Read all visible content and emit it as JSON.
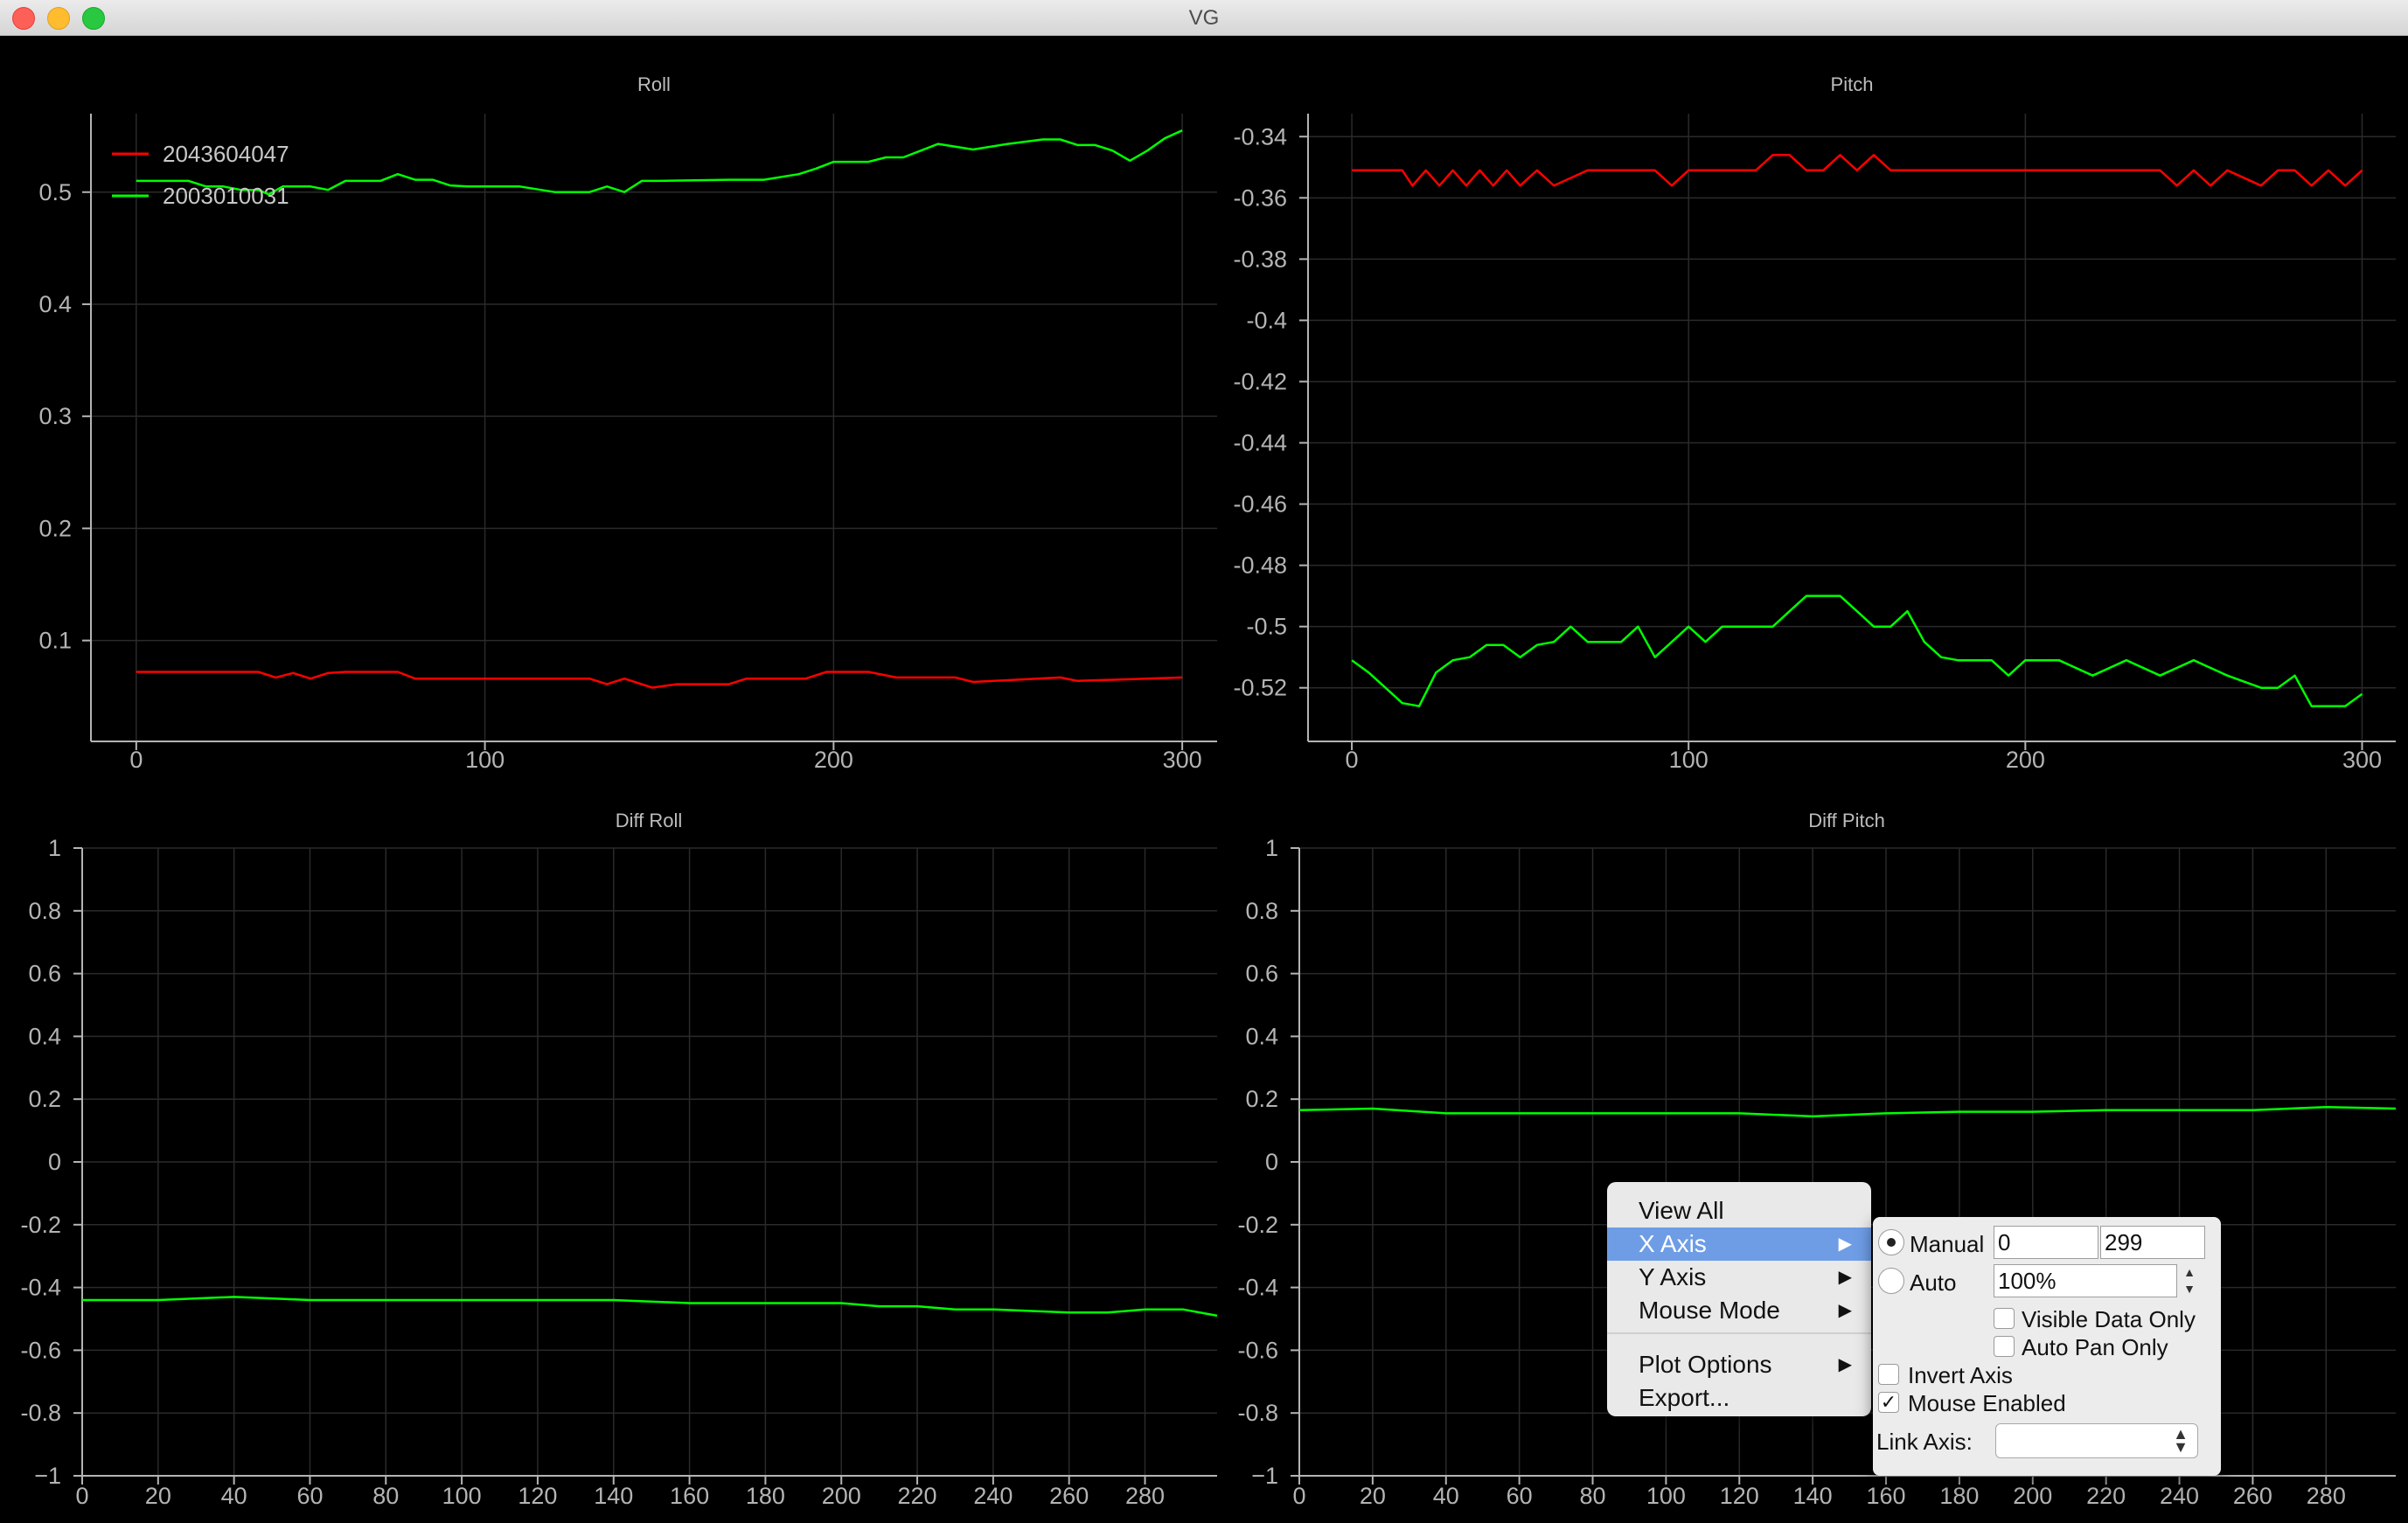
{
  "window": {
    "title": "VG"
  },
  "colors": {
    "red_series": "#ff0000",
    "green_series": "#00ff00",
    "axis_text": "#b4b4b4",
    "grid": "#2a2a2a"
  },
  "plots": [
    {
      "title": "Roll",
      "x_ticks": [
        "0",
        "100",
        "200",
        "300"
      ],
      "y_ticks": [
        "0.5",
        "0.4",
        "0.3",
        "0.2",
        "0.1"
      ],
      "legend": [
        {
          "label": "2043604047",
          "color": "red"
        },
        {
          "label": "2003010031",
          "color": "green"
        }
      ]
    },
    {
      "title": "Pitch",
      "x_ticks": [
        "0",
        "100",
        "200",
        "300"
      ],
      "y_ticks": [
        "-0.34",
        "-0.36",
        "-0.38",
        "-0.4",
        "-0.42",
        "-0.44",
        "-0.46",
        "-0.48",
        "-0.5",
        "-0.52"
      ]
    },
    {
      "title": "Diff Roll",
      "x_ticks": [
        "0",
        "20",
        "40",
        "60",
        "80",
        "100",
        "120",
        "140",
        "160",
        "180",
        "200",
        "220",
        "240",
        "260",
        "280"
      ],
      "y_ticks": [
        "1",
        "0.8",
        "0.6",
        "0.4",
        "0.2",
        "0",
        "-0.2",
        "-0.4",
        "-0.6",
        "-0.8",
        "−1"
      ]
    },
    {
      "title": "Diff Pitch",
      "x_ticks": [
        "0",
        "20",
        "40",
        "60",
        "80",
        "100",
        "120",
        "140",
        "160",
        "180",
        "200",
        "220",
        "240",
        "260",
        "280"
      ],
      "y_ticks": [
        "1",
        "0.8",
        "0.6",
        "0.4",
        "0.2",
        "0",
        "-0.2",
        "-0.4",
        "-0.6",
        "-0.8",
        "−1"
      ]
    }
  ],
  "chart_data": [
    {
      "type": "line",
      "title": "Roll",
      "xlim": [
        -13,
        310
      ],
      "ylim": [
        0.01,
        0.57
      ],
      "series": [
        {
          "name": "2043604047",
          "color": "red",
          "x": [
            0,
            35,
            40,
            45,
            50,
            55,
            60,
            75,
            80,
            130,
            135,
            140,
            148,
            155,
            170,
            175,
            192,
            198,
            210,
            218,
            225,
            235,
            240,
            265,
            270,
            300
          ],
          "y": [
            0.072,
            0.072,
            0.067,
            0.071,
            0.066,
            0.071,
            0.072,
            0.072,
            0.066,
            0.066,
            0.061,
            0.066,
            0.058,
            0.061,
            0.061,
            0.066,
            0.066,
            0.072,
            0.072,
            0.067,
            0.067,
            0.067,
            0.063,
            0.067,
            0.064,
            0.067
          ]
        },
        {
          "name": "2003010031",
          "color": "green",
          "x": [
            0,
            15,
            20,
            25,
            30,
            35,
            38,
            42,
            45,
            50,
            55,
            60,
            65,
            70,
            75,
            80,
            85,
            90,
            95,
            100,
            110,
            120,
            130,
            135,
            140,
            145,
            150,
            170,
            180,
            190,
            195,
            200,
            210,
            215,
            220,
            225,
            230,
            240,
            250,
            260,
            265,
            270,
            275,
            280,
            285,
            290,
            295,
            300
          ],
          "y": [
            0.51,
            0.51,
            0.505,
            0.505,
            0.502,
            0.502,
            0.498,
            0.505,
            0.505,
            0.505,
            0.502,
            0.51,
            0.51,
            0.51,
            0.516,
            0.511,
            0.511,
            0.506,
            0.505,
            0.505,
            0.505,
            0.5,
            0.5,
            0.505,
            0.5,
            0.51,
            0.51,
            0.511,
            0.511,
            0.516,
            0.521,
            0.527,
            0.527,
            0.531,
            0.531,
            0.537,
            0.543,
            0.538,
            0.543,
            0.547,
            0.547,
            0.542,
            0.542,
            0.537,
            0.528,
            0.537,
            0.548,
            0.555
          ]
        }
      ]
    },
    {
      "type": "line",
      "title": "Pitch",
      "xlim": [
        -13,
        310
      ],
      "ylim": [
        -0.5375,
        -0.3325
      ],
      "series": [
        {
          "color": "red",
          "x": [
            0,
            15,
            18,
            22,
            26,
            30,
            34,
            38,
            42,
            46,
            50,
            55,
            60,
            70,
            90,
            95,
            100,
            120,
            125,
            130,
            135,
            140,
            145,
            150,
            155,
            160,
            240,
            245,
            250,
            255,
            260,
            270,
            275,
            280,
            285,
            290,
            295,
            300
          ],
          "y": [
            -0.351,
            -0.351,
            -0.356,
            -0.351,
            -0.356,
            -0.351,
            -0.356,
            -0.351,
            -0.356,
            -0.351,
            -0.356,
            -0.351,
            -0.356,
            -0.351,
            -0.351,
            -0.356,
            -0.351,
            -0.351,
            -0.346,
            -0.346,
            -0.351,
            -0.351,
            -0.346,
            -0.351,
            -0.346,
            -0.351,
            -0.351,
            -0.356,
            -0.351,
            -0.356,
            -0.351,
            -0.356,
            -0.351,
            -0.351,
            -0.356,
            -0.351,
            -0.356,
            -0.351
          ]
        },
        {
          "color": "green",
          "x": [
            0,
            5,
            10,
            15,
            20,
            25,
            30,
            35,
            40,
            45,
            50,
            55,
            60,
            65,
            70,
            75,
            80,
            85,
            90,
            95,
            100,
            105,
            110,
            115,
            120,
            125,
            130,
            135,
            140,
            145,
            150,
            155,
            160,
            165,
            170,
            175,
            180,
            185,
            190,
            195,
            200,
            210,
            220,
            230,
            240,
            250,
            260,
            270,
            275,
            280,
            285,
            290,
            295,
            300
          ],
          "y": [
            -0.511,
            -0.515,
            -0.52,
            -0.525,
            -0.526,
            -0.515,
            -0.511,
            -0.51,
            -0.506,
            -0.506,
            -0.51,
            -0.506,
            -0.505,
            -0.5,
            -0.505,
            -0.505,
            -0.505,
            -0.5,
            -0.51,
            -0.505,
            -0.5,
            -0.505,
            -0.5,
            -0.5,
            -0.5,
            -0.5,
            -0.495,
            -0.49,
            -0.49,
            -0.49,
            -0.495,
            -0.5,
            -0.5,
            -0.495,
            -0.505,
            -0.51,
            -0.511,
            -0.511,
            -0.511,
            -0.516,
            -0.511,
            -0.511,
            -0.516,
            -0.511,
            -0.516,
            -0.511,
            -0.516,
            -0.52,
            -0.52,
            -0.516,
            -0.526,
            -0.526,
            -0.526,
            -0.522
          ]
        }
      ]
    },
    {
      "type": "line",
      "title": "Diff Roll",
      "xlim": [
        0,
        299
      ],
      "ylim": [
        -1,
        1
      ],
      "series": [
        {
          "color": "green",
          "x": [
            0,
            20,
            40,
            60,
            80,
            100,
            120,
            140,
            160,
            180,
            200,
            210,
            220,
            230,
            240,
            260,
            270,
            280,
            290,
            299
          ],
          "y": [
            -0.44,
            -0.44,
            -0.43,
            -0.44,
            -0.44,
            -0.44,
            -0.44,
            -0.44,
            -0.45,
            -0.45,
            -0.45,
            -0.46,
            -0.46,
            -0.47,
            -0.47,
            -0.48,
            -0.48,
            -0.47,
            -0.47,
            -0.49
          ]
        }
      ]
    },
    {
      "type": "line",
      "title": "Diff Pitch",
      "xlim": [
        0,
        299
      ],
      "ylim": [
        -1,
        1
      ],
      "series": [
        {
          "color": "green",
          "x": [
            0,
            20,
            40,
            60,
            80,
            100,
            120,
            140,
            160,
            180,
            200,
            220,
            240,
            260,
            280,
            299
          ],
          "y": [
            0.165,
            0.17,
            0.155,
            0.155,
            0.155,
            0.155,
            0.155,
            0.145,
            0.155,
            0.16,
            0.16,
            0.165,
            0.165,
            0.165,
            0.175,
            0.17
          ]
        }
      ]
    }
  ],
  "context_menu": {
    "items": [
      {
        "label": "View All",
        "has_submenu": false,
        "highlighted": false
      },
      {
        "label": "X Axis",
        "has_submenu": true,
        "highlighted": true
      },
      {
        "label": "Y Axis",
        "has_submenu": true,
        "highlighted": false
      },
      {
        "label": "Mouse Mode",
        "has_submenu": true,
        "highlighted": false
      },
      {
        "label": "Plot Options",
        "has_submenu": true,
        "highlighted": false
      },
      {
        "label": "Export...",
        "has_submenu": false,
        "highlighted": false
      }
    ],
    "submenu_arrow": "▶"
  },
  "x_axis_panel": {
    "manual_label": "Manual",
    "manual_selected": true,
    "min_value": "0",
    "max_value": "299",
    "auto_label": "Auto",
    "auto_value": "100%",
    "visible_data_only": "Visible Data Only",
    "visible_data_only_checked": false,
    "auto_pan_only": "Auto Pan Only",
    "auto_pan_only_checked": false,
    "invert_axis": "Invert Axis",
    "invert_axis_checked": false,
    "mouse_enabled": "Mouse Enabled",
    "mouse_enabled_checked": true,
    "check_mark": "✓",
    "link_axis_label": "Link Axis:",
    "link_axis_value": ""
  }
}
